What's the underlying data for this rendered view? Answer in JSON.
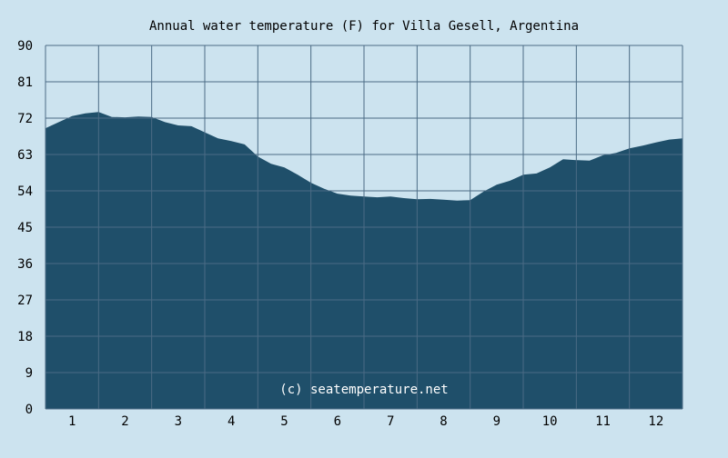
{
  "chart_data": {
    "type": "area",
    "title": "Annual water temperature (F) for Villa Gesell, Argentina",
    "watermark": "(c) seatemperature.net",
    "xlabel": "",
    "ylabel": "",
    "x_ticks": [
      "1",
      "2",
      "3",
      "4",
      "5",
      "6",
      "7",
      "8",
      "9",
      "10",
      "11",
      "12"
    ],
    "y_ticks": [
      "0",
      "9",
      "18",
      "27",
      "36",
      "45",
      "54",
      "63",
      "72",
      "81",
      "90"
    ],
    "ylim": [
      0,
      90
    ],
    "xlim": [
      0.5,
      12.5
    ],
    "grid": true,
    "colors": {
      "background": "#cce3ef",
      "area_fill": "#1f4f6a",
      "grid": "#4b6b85",
      "text": "#000000",
      "watermark": "#ffffff"
    },
    "series": [
      {
        "x": [
          0.5,
          0.75,
          1.0,
          1.25,
          1.5,
          1.75,
          2.0,
          2.25,
          2.5,
          2.75,
          3.0,
          3.25,
          3.5,
          3.75,
          4.0,
          4.25,
          4.5,
          4.75,
          5.0,
          5.25,
          5.5,
          5.75,
          6.0,
          6.25,
          6.5,
          6.75,
          7.0,
          7.25,
          7.5,
          7.75,
          8.0,
          8.25,
          8.5,
          8.75,
          9.0,
          9.25,
          9.5,
          9.75,
          10.0,
          10.25,
          10.5,
          10.75,
          11.0,
          11.25,
          11.5,
          11.75,
          12.0,
          12.25,
          12.5
        ],
        "values": [
          69.5,
          71.0,
          72.5,
          73.2,
          73.5,
          72.3,
          72.2,
          72.4,
          72.3,
          71.0,
          70.2,
          70.0,
          68.5,
          67.0,
          66.3,
          65.5,
          62.5,
          60.7,
          59.8,
          58.0,
          56.0,
          54.5,
          53.3,
          52.8,
          52.6,
          52.4,
          52.6,
          52.2,
          51.9,
          52.0,
          51.8,
          51.6,
          51.7,
          53.8,
          55.5,
          56.5,
          58.0,
          58.3,
          59.8,
          61.8,
          61.6,
          61.5,
          62.8,
          63.4,
          64.5,
          65.2,
          66.0,
          66.7,
          67.0
        ]
      }
    ]
  }
}
